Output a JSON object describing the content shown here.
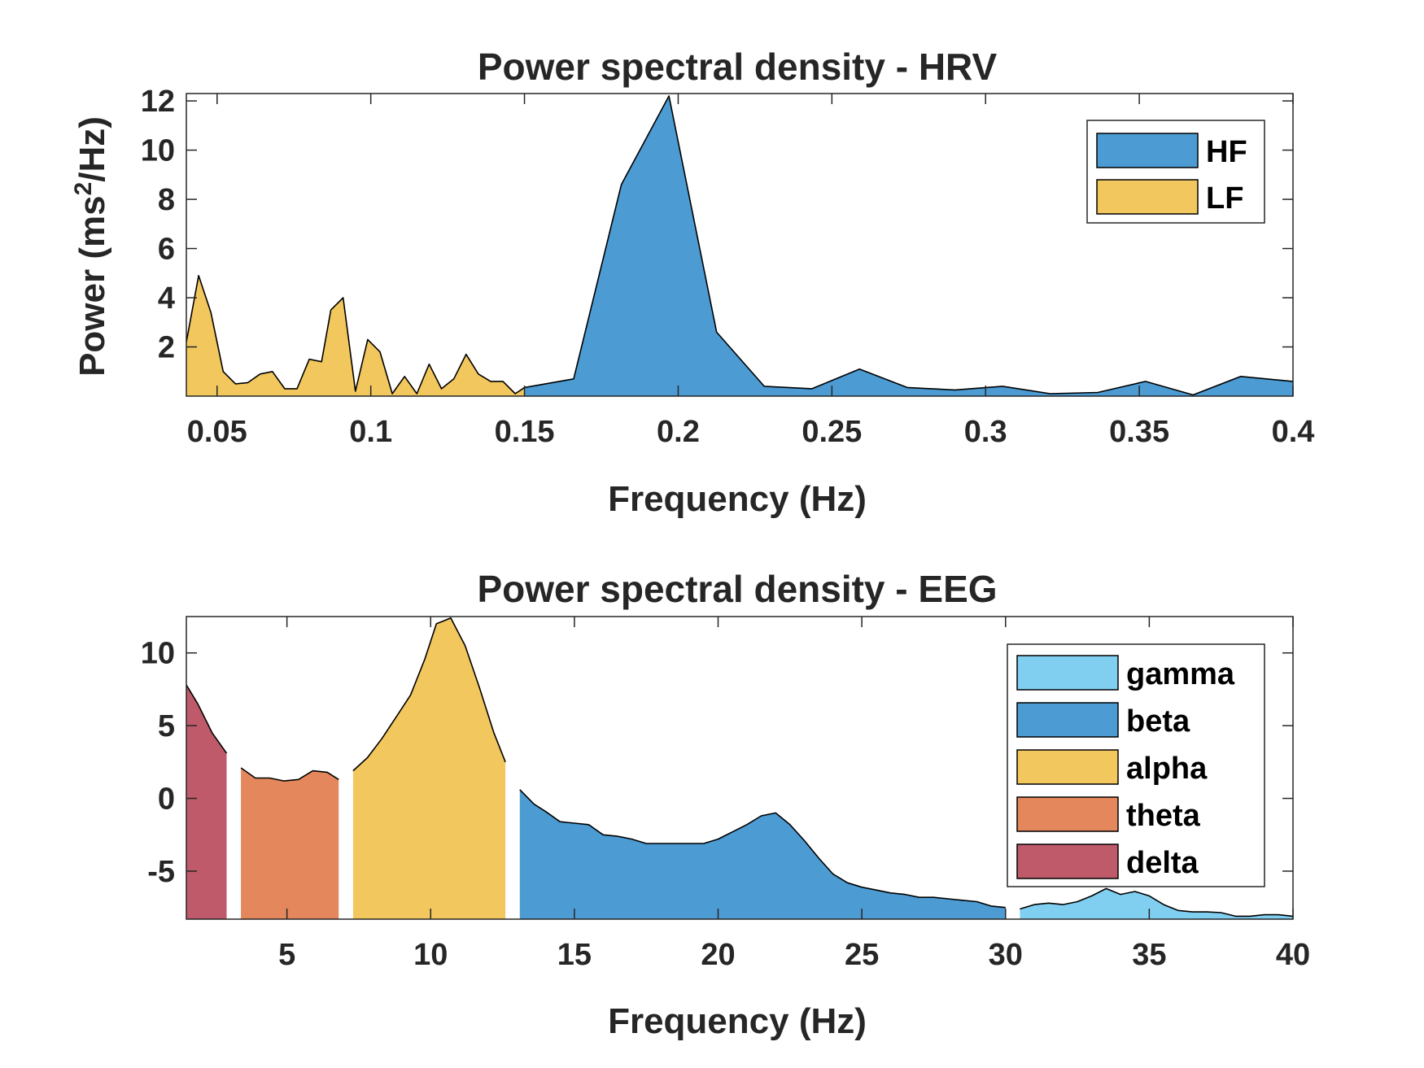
{
  "chart_data": [
    {
      "type": "area",
      "title": "Power spectral density - HRV",
      "xlabel": "Frequency (Hz)",
      "ylabel_base": "Power (ms",
      "ylabel_sup": "2",
      "ylabel_tail": "/Hz)",
      "xlim": [
        0.04,
        0.4
      ],
      "ylim": [
        0,
        12.3
      ],
      "xticks": [
        0.05,
        0.1,
        0.15,
        0.2,
        0.25,
        0.3,
        0.35,
        0.4
      ],
      "xtick_labels": [
        "0.05",
        "0.1",
        "0.15",
        "0.2",
        "0.25",
        "0.3",
        "0.35",
        "0.4"
      ],
      "yticks": [
        2,
        4,
        6,
        8,
        10,
        12
      ],
      "ytick_labels": [
        "2",
        "4",
        "6",
        "8",
        "10",
        "12"
      ],
      "legend_position": "top-right",
      "series": [
        {
          "name": "HF",
          "color": "#4C9BD3",
          "x": [
            0.15,
            0.166,
            0.1815,
            0.197,
            0.2125,
            0.228,
            0.2435,
            0.259,
            0.2745,
            0.29,
            0.3055,
            0.321,
            0.3365,
            0.352,
            0.3675,
            0.383,
            0.4
          ],
          "y": [
            0.35,
            0.7,
            8.6,
            12.2,
            2.6,
            0.4,
            0.3,
            1.1,
            0.35,
            0.25,
            0.4,
            0.1,
            0.15,
            0.6,
            0.05,
            0.8,
            0.6
          ]
        },
        {
          "name": "LF",
          "color": "#F1C75E",
          "x": [
            0.04,
            0.044,
            0.048,
            0.052,
            0.056,
            0.06,
            0.064,
            0.068,
            0.072,
            0.076,
            0.08,
            0.084,
            0.087,
            0.091,
            0.095,
            0.099,
            0.103,
            0.107,
            0.111,
            0.115,
            0.119,
            0.123,
            0.127,
            0.131,
            0.135,
            0.139,
            0.143,
            0.147,
            0.15
          ],
          "y": [
            2.2,
            4.9,
            3.4,
            1.0,
            0.5,
            0.55,
            0.9,
            1.0,
            0.3,
            0.3,
            1.5,
            1.4,
            3.5,
            4.0,
            0.2,
            2.3,
            1.8,
            0.1,
            0.8,
            0.1,
            1.3,
            0.3,
            0.7,
            1.7,
            0.9,
            0.6,
            0.6,
            0.1,
            0.35
          ]
        }
      ]
    },
    {
      "type": "area",
      "title": "Power spectral density - EEG",
      "xlabel": "Frequency (Hz)",
      "xlim": [
        1.5,
        40
      ],
      "ylim": [
        -8.3,
        12.5
      ],
      "xticks": [
        5,
        10,
        15,
        20,
        25,
        30,
        35,
        40
      ],
      "xtick_labels": [
        "5",
        "10",
        "15",
        "20",
        "25",
        "30",
        "35",
        "40"
      ],
      "yticks": [
        -5,
        0,
        5,
        10
      ],
      "ytick_labels": [
        "-5",
        "0",
        "5",
        "10"
      ],
      "legend_position": "top-right",
      "series": [
        {
          "name": "gamma",
          "color": "#80CFF0",
          "x": [
            30.5,
            31,
            31.5,
            32,
            32.5,
            33,
            33.5,
            34,
            34.5,
            35,
            35.5,
            36,
            36.5,
            37,
            37.5,
            38,
            38.5,
            39,
            39.5,
            40
          ],
          "y": [
            -7.6,
            -7.3,
            -7.2,
            -7.3,
            -7.1,
            -6.7,
            -6.2,
            -6.6,
            -6.4,
            -6.7,
            -7.3,
            -7.7,
            -7.8,
            -7.8,
            -7.85,
            -8.1,
            -8.1,
            -8.0,
            -8.0,
            -8.1
          ]
        },
        {
          "name": "beta",
          "color": "#4C9BD3",
          "x": [
            13.1,
            13.6,
            14,
            14.5,
            15,
            15.5,
            16,
            16.5,
            17,
            17.5,
            18,
            18.5,
            19,
            19.5,
            20,
            20.5,
            21,
            21.5,
            22,
            22.5,
            23,
            23.5,
            24,
            24.5,
            25,
            25.5,
            26,
            26.5,
            27,
            27.5,
            28,
            28.5,
            29,
            29.5,
            30
          ],
          "y": [
            0.6,
            -0.4,
            -0.9,
            -1.6,
            -1.7,
            -1.8,
            -2.5,
            -2.6,
            -2.8,
            -3.1,
            -3.1,
            -3.1,
            -3.1,
            -3.1,
            -2.8,
            -2.3,
            -1.8,
            -1.2,
            -1.0,
            -1.8,
            -2.9,
            -4.1,
            -5.2,
            -5.8,
            -6.1,
            -6.3,
            -6.5,
            -6.6,
            -6.8,
            -6.8,
            -6.9,
            -7.0,
            -7.1,
            -7.4,
            -7.5
          ]
        },
        {
          "name": "alpha",
          "color": "#F1C75E",
          "x": [
            7.3,
            7.8,
            8.3,
            8.8,
            9.3,
            9.8,
            10.2,
            10.7,
            11.2,
            11.7,
            12.2,
            12.6
          ],
          "y": [
            1.9,
            2.8,
            4.1,
            5.6,
            7.1,
            9.6,
            12.0,
            12.4,
            10.5,
            7.6,
            4.5,
            2.5
          ]
        },
        {
          "name": "theta",
          "color": "#E4875C",
          "x": [
            3.4,
            3.9,
            4.4,
            4.9,
            5.4,
            5.9,
            6.4,
            6.8
          ],
          "y": [
            2.1,
            1.4,
            1.4,
            1.2,
            1.3,
            1.9,
            1.8,
            1.3
          ]
        },
        {
          "name": "delta",
          "color": "#BE5A6A",
          "x": [
            1.5,
            1.9,
            2.4,
            2.9
          ],
          "y": [
            7.8,
            6.5,
            4.5,
            3.1
          ]
        }
      ]
    }
  ]
}
